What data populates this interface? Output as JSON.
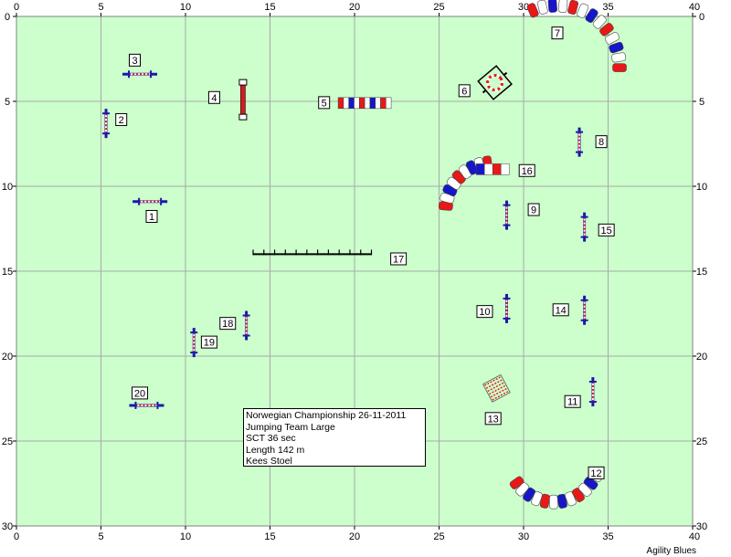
{
  "axis": {
    "x_ticks": [
      "0",
      "5",
      "10",
      "15",
      "20",
      "25",
      "30",
      "35",
      "40"
    ],
    "y_ticks": [
      "0",
      "5",
      "10",
      "15",
      "20",
      "25",
      "30"
    ],
    "x_range": [
      0,
      40
    ],
    "y_range": [
      0,
      30
    ]
  },
  "colors": {
    "field": "#ccffcc",
    "grid": "#a9a9a9",
    "pole_blue": "#1a1aa8",
    "pole_red": "#d41c1c",
    "tunnel_red": "#e81818",
    "tunnel_blue": "#1616c8"
  },
  "info": {
    "line1": "Norwegian Championship 26-11-2011",
    "line2": "Jumping Team Large",
    "line3": "SCT 36 sec",
    "line4": "Length 142 m",
    "line5": "Kees Stoel"
  },
  "brand": "Agility Blues",
  "obstacles": [
    {
      "number": "1",
      "type": "jump",
      "x": 7.9,
      "y": 10.9,
      "orientation": "horizontal"
    },
    {
      "number": "2",
      "type": "jump",
      "x": 5.3,
      "y": 6.3,
      "orientation": "vertical"
    },
    {
      "number": "3",
      "type": "jump",
      "x": 7.3,
      "y": 3.4,
      "orientation": "horizontal"
    },
    {
      "number": "4",
      "type": "wall",
      "x": 13.4,
      "y": 4.9,
      "orientation": "vertical"
    },
    {
      "number": "5",
      "type": "tire_row",
      "x": 20.6,
      "y": 5.1,
      "orientation": "horizontal"
    },
    {
      "number": "6",
      "type": "tire",
      "x": 28.3,
      "y": 3.9,
      "orientation": "diagonal"
    },
    {
      "number": "7",
      "type": "tunnel",
      "x": 34.5,
      "y": 2.5,
      "orientation": "curve"
    },
    {
      "number": "8",
      "type": "jump",
      "x": 33.3,
      "y": 7.4,
      "orientation": "vertical"
    },
    {
      "number": "9",
      "type": "jump",
      "x": 29.0,
      "y": 11.7,
      "orientation": "vertical"
    },
    {
      "number": "10",
      "type": "jump",
      "x": 29.0,
      "y": 17.2,
      "orientation": "vertical"
    },
    {
      "number": "11",
      "type": "jump",
      "x": 34.1,
      "y": 22.1,
      "orientation": "vertical"
    },
    {
      "number": "12",
      "type": "tunnel",
      "x": 31.9,
      "y": 28.5,
      "orientation": "curve"
    },
    {
      "number": "13",
      "type": "weave",
      "x": 28.4,
      "y": 21.9,
      "orientation": "diagonal"
    },
    {
      "number": "14",
      "type": "jump",
      "x": 33.6,
      "y": 17.3,
      "orientation": "vertical"
    },
    {
      "number": "15",
      "type": "jump",
      "x": 33.6,
      "y": 12.4,
      "orientation": "vertical"
    },
    {
      "number": "16",
      "type": "tunnel",
      "x": 26.9,
      "y": 9.8,
      "orientation": "curve"
    },
    {
      "number": "17",
      "type": "weave",
      "x": 17.5,
      "y": 14.0,
      "orientation": "horizontal"
    },
    {
      "number": "18",
      "type": "jump",
      "x": 13.6,
      "y": 18.2,
      "orientation": "vertical"
    },
    {
      "number": "19",
      "type": "jump",
      "x": 10.5,
      "y": 19.2,
      "orientation": "vertical"
    },
    {
      "number": "20",
      "type": "jump",
      "x": 7.7,
      "y": 22.9,
      "orientation": "horizontal"
    }
  ]
}
